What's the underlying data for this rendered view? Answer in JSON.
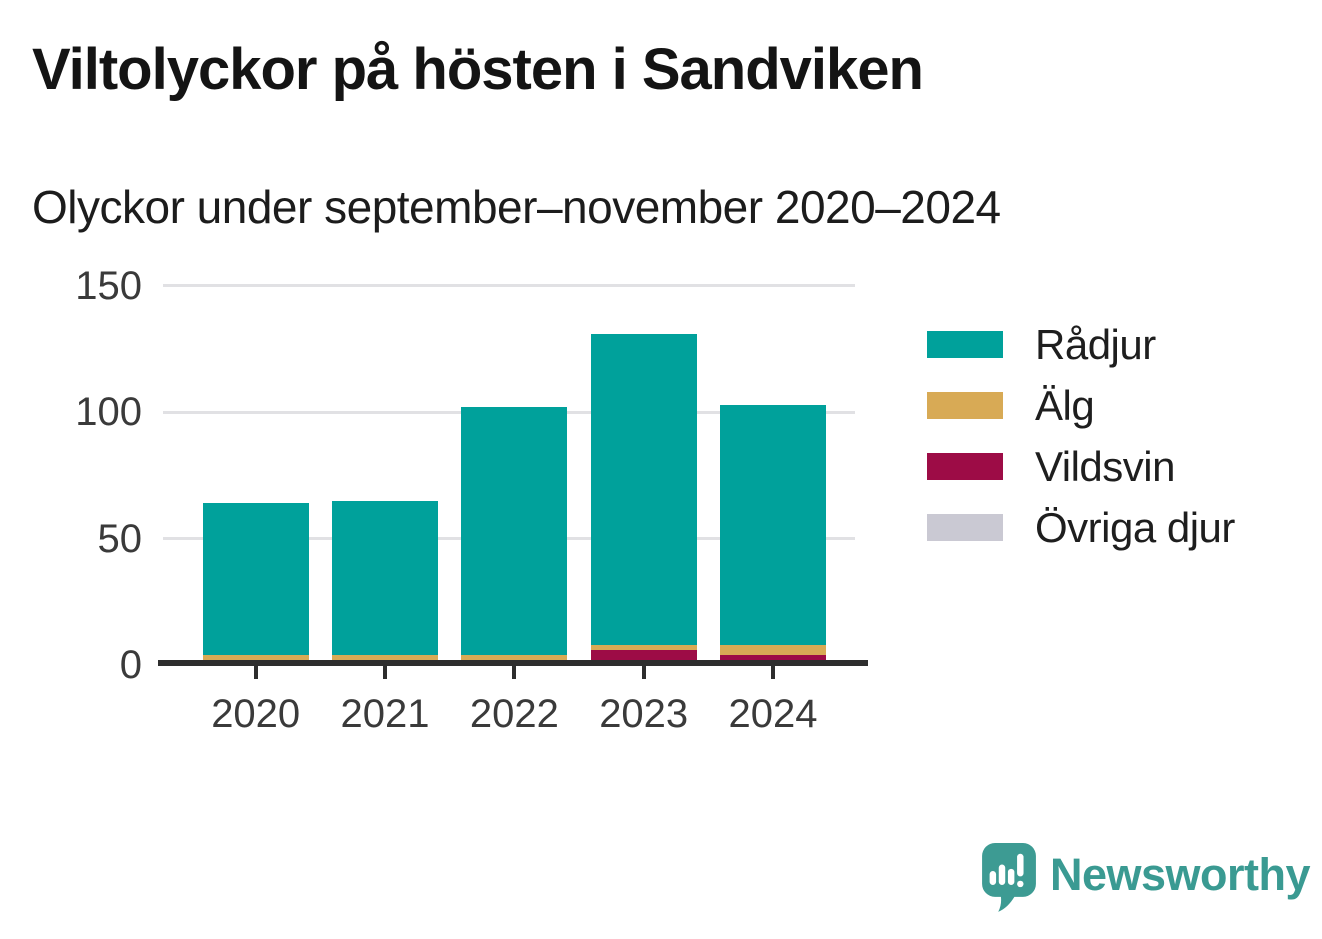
{
  "header": {
    "title": "Viltolyckor på hösten i Sandviken",
    "subtitle": "Olyckor under september–november 2020–2024"
  },
  "chart_data": {
    "type": "bar",
    "stacked": true,
    "title": "Viltolyckor på hösten i Sandviken",
    "subtitle": "Olyckor under september–november 2020–2024",
    "categories": [
      "2020",
      "2021",
      "2022",
      "2023",
      "2024"
    ],
    "series": [
      {
        "name": "Rådjur",
        "color": "#00a19b",
        "values": [
          60,
          61,
          98,
          123,
          95
        ]
      },
      {
        "name": "Älg",
        "color": "#d8aa55",
        "values": [
          3,
          2,
          4,
          2,
          4
        ]
      },
      {
        "name": "Vildsvin",
        "color": "#9d0c46",
        "values": [
          1,
          2,
          0,
          6,
          4
        ]
      },
      {
        "name": "Övriga djur",
        "color": "#cac9d3",
        "values": [
          0,
          0,
          0,
          0,
          0
        ]
      }
    ],
    "totals": [
      64,
      65,
      102,
      131,
      103
    ],
    "stack_order_bottom_to_top": [
      "Övriga djur",
      "Vildsvin",
      "Älg",
      "Rådjur"
    ],
    "y_ticks": [
      0,
      50,
      100,
      150
    ],
    "ylim": [
      0,
      150
    ],
    "xlabel": "",
    "ylabel": "",
    "grid": "horizontal",
    "legend_position": "right"
  },
  "colors": {
    "background": "#ffffff",
    "axis": "#2e2e2e",
    "gridline": "#e1e1e4",
    "tick_text": "#3a3a3a",
    "title_text": "#141414",
    "brand_teal": "#3a9a92"
  },
  "branding": {
    "wordmark": "Newsworthy",
    "icon": "newsworthy-speech-bubble-chart-icon"
  }
}
